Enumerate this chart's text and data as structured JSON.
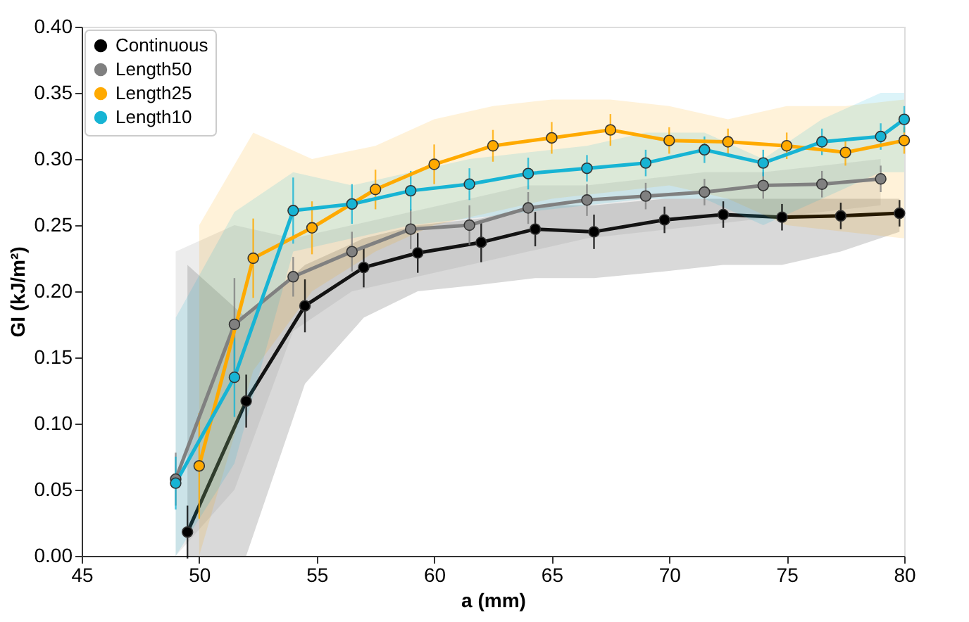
{
  "chart_data": {
    "type": "line",
    "xlabel": "a (mm)",
    "ylabel": "GI (kJ/m²)",
    "xlim": [
      45,
      80
    ],
    "xticks": [
      45,
      50,
      55,
      60,
      65,
      70,
      75,
      80
    ],
    "ylim": [
      0,
      0.4
    ],
    "yticks": [
      {
        "value": 0,
        "label": "0.00"
      },
      0.05,
      {
        "value": 0.1,
        "label": "0.10"
      },
      0.15,
      {
        "value": 0.2,
        "label": "0.20"
      },
      0.25,
      {
        "value": 0.3,
        "label": "0.30"
      },
      0.35,
      {
        "value": 0.4,
        "label": "0.40"
      }
    ],
    "grid": false,
    "legend": "top left",
    "marker": "circle",
    "line_style": "solid",
    "series": [
      {
        "name": "Continuous",
        "color": "#000000",
        "x": [
          49.5,
          52,
          54.5,
          57,
          59.3,
          62,
          64.3,
          66.8,
          69.8,
          72.3,
          74.8,
          77.3,
          79.8
        ],
        "values": [
          0.018,
          0.117,
          0.189,
          0.218,
          0.229,
          0.237,
          0.247,
          0.245,
          0.254,
          0.258,
          0.256,
          0.257,
          0.259
        ],
        "errors": [
          0.02,
          0.02,
          0.02,
          0.015,
          0.015,
          0.015,
          0.013,
          0.013,
          0.01,
          0.01,
          0.01,
          0.01,
          0.01
        ],
        "lower": [
          0.0,
          0.0,
          0.13,
          0.18,
          0.2,
          0.205,
          0.21,
          0.21,
          0.215,
          0.22,
          0.22,
          0.23,
          0.245
        ],
        "upper": [
          0.22,
          0.18,
          0.22,
          0.24,
          0.25,
          0.255,
          0.265,
          0.265,
          0.27,
          0.27,
          0.27,
          0.27,
          0.27
        ]
      },
      {
        "name": "Length50",
        "color": "#808080",
        "x": [
          49,
          51.5,
          54,
          56.5,
          59,
          61.5,
          64,
          66.5,
          69,
          71.5,
          74,
          76.5,
          79
        ],
        "values": [
          0.058,
          0.175,
          0.211,
          0.23,
          0.247,
          0.25,
          0.263,
          0.269,
          0.272,
          0.275,
          0.28,
          0.281,
          0.285
        ],
        "errors": [
          0.02,
          0.035,
          0.015,
          0.015,
          0.015,
          0.015,
          0.012,
          0.012,
          0.01,
          0.01,
          0.01,
          0.01,
          0.01
        ],
        "lower": [
          0.0,
          0.05,
          0.17,
          0.2,
          0.21,
          0.22,
          0.23,
          0.24,
          0.245,
          0.25,
          0.255,
          0.26,
          0.265
        ],
        "upper": [
          0.23,
          0.25,
          0.24,
          0.25,
          0.26,
          0.27,
          0.28,
          0.28,
          0.285,
          0.29,
          0.29,
          0.295,
          0.3
        ]
      },
      {
        "name": "Length25",
        "color": "#ffaa00",
        "x": [
          50,
          52.3,
          54.8,
          57.5,
          60,
          62.5,
          65,
          67.5,
          70,
          72.5,
          75,
          77.5,
          80
        ],
        "values": [
          0.068,
          0.225,
          0.248,
          0.277,
          0.296,
          0.31,
          0.316,
          0.322,
          0.314,
          0.313,
          0.31,
          0.305,
          0.314
        ],
        "errors": [
          0.04,
          0.03,
          0.02,
          0.015,
          0.015,
          0.012,
          0.012,
          0.012,
          0.01,
          0.01,
          0.01,
          0.01,
          0.01
        ],
        "lower": [
          0.0,
          0.14,
          0.2,
          0.23,
          0.25,
          0.26,
          0.27,
          0.275,
          0.28,
          0.27,
          0.25,
          0.245,
          0.24
        ],
        "upper": [
          0.25,
          0.32,
          0.3,
          0.31,
          0.33,
          0.34,
          0.345,
          0.345,
          0.34,
          0.33,
          0.34,
          0.34,
          0.345
        ]
      },
      {
        "name": "Length10",
        "color": "#17b4d4",
        "x": [
          49,
          51.5,
          54,
          56.5,
          59,
          61.5,
          64,
          66.5,
          69,
          71.5,
          74,
          76.5,
          79,
          80
        ],
        "values": [
          0.055,
          0.135,
          0.261,
          0.266,
          0.276,
          0.281,
          0.289,
          0.293,
          0.297,
          0.307,
          0.297,
          0.313,
          0.317,
          0.33
        ],
        "errors": [
          0.02,
          0.03,
          0.025,
          0.015,
          0.015,
          0.012,
          0.012,
          0.01,
          0.01,
          0.01,
          0.01,
          0.01,
          0.01,
          0.01
        ],
        "lower": [
          0.0,
          0.07,
          0.23,
          0.24,
          0.25,
          0.255,
          0.26,
          0.265,
          0.27,
          0.27,
          0.25,
          0.27,
          0.29,
          0.29
        ],
        "upper": [
          0.18,
          0.26,
          0.29,
          0.28,
          0.29,
          0.3,
          0.305,
          0.31,
          0.32,
          0.32,
          0.3,
          0.33,
          0.35,
          0.35
        ]
      }
    ]
  }
}
